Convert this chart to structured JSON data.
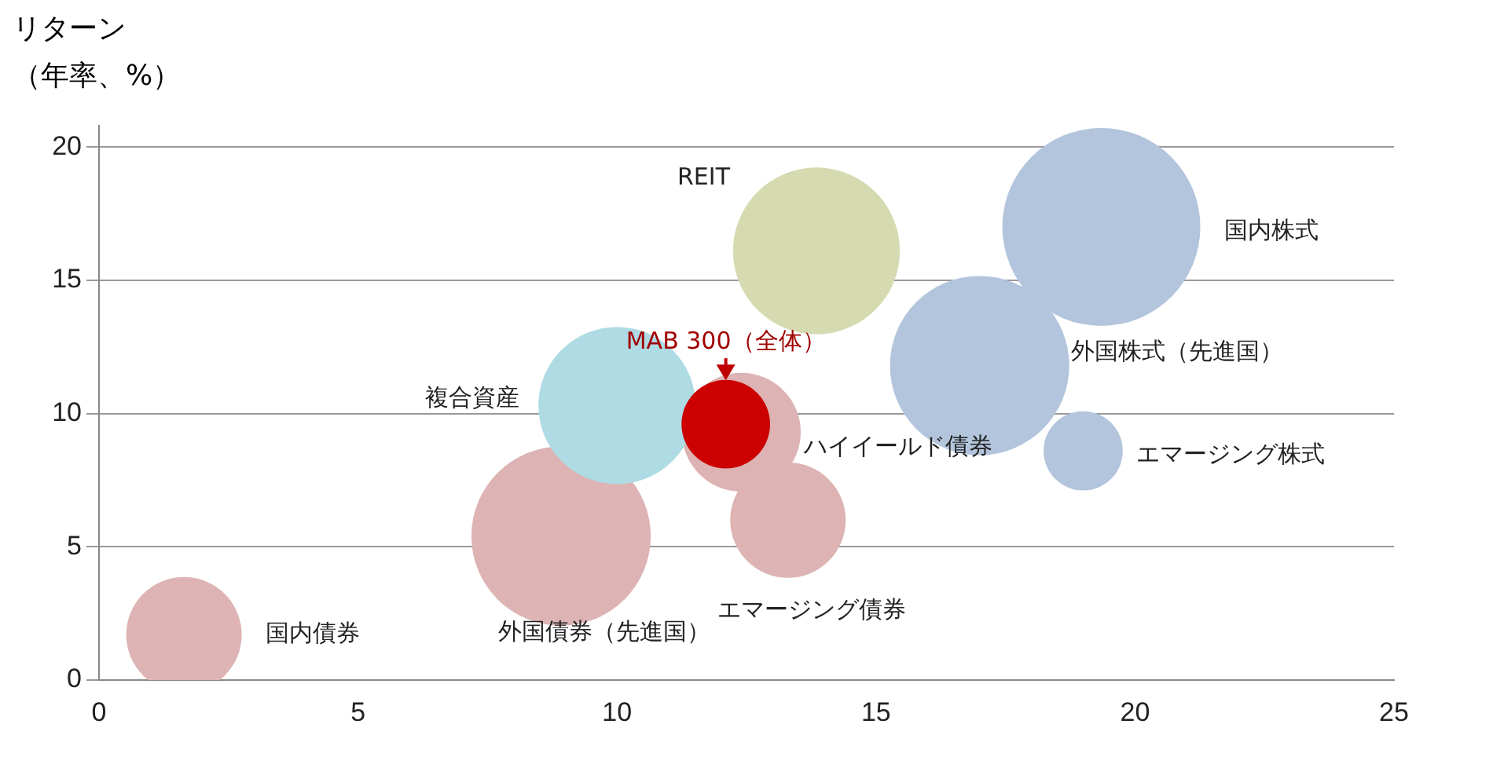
{
  "chart_data": {
    "type": "bubble",
    "ylabel": "リターン（年率、%）",
    "xlim": [
      0,
      25
    ],
    "xticks": [
      0,
      5,
      10,
      15,
      20,
      25
    ],
    "ylim": [
      0,
      20.8
    ],
    "yticks": [
      0,
      5,
      10,
      15,
      20
    ],
    "grid": "y",
    "legend": false,
    "series": [
      {
        "name": "国内債券",
        "color": "#ddb3b3",
        "x": [
          1.64
        ],
        "values": [
          1.7
        ],
        "sizes": [
          0.34
        ]
      },
      {
        "name": "外国債券（先進国）",
        "color": "#ddb3b3",
        "x": [
          8.92
        ],
        "values": [
          5.4
        ],
        "sizes": [
          0.82
        ]
      },
      {
        "name": "エマージング債券",
        "color": "#ddb3b3",
        "x": [
          13.3
        ],
        "values": [
          6.0
        ],
        "sizes": [
          0.34
        ]
      },
      {
        "name": "ハイイールド債券",
        "color": "#ddb3b3",
        "x": [
          12.4
        ],
        "values": [
          9.3
        ],
        "sizes": [
          0.36
        ]
      },
      {
        "name": "複合資産",
        "color": "#aedbe4",
        "x": [
          10.0
        ],
        "values": [
          10.3
        ],
        "sizes": [
          0.63
        ]
      },
      {
        "name": "REIT",
        "color": "#d6dab0",
        "x": [
          13.85
        ],
        "values": [
          16.1
        ],
        "sizes": [
          0.71
        ]
      },
      {
        "name": "外国株式（先進国）",
        "color": "#b3c5dc",
        "x": [
          17.0
        ],
        "values": [
          11.8
        ],
        "sizes": [
          0.82
        ]
      },
      {
        "name": "国内株式",
        "color": "#b3c5dc",
        "x": [
          19.35
        ],
        "values": [
          17.0
        ],
        "sizes": [
          1
        ]
      },
      {
        "name": "エマージング株式",
        "color": "#b3c5dc",
        "x": [
          19.0
        ],
        "values": [
          8.6
        ],
        "sizes": [
          0.16
        ]
      },
      {
        "name": "MAB 300（全体）",
        "color": "#cc0000",
        "x": [
          12.1
        ],
        "values": [
          9.6
        ],
        "sizes": [
          0.2
        ]
      }
    ]
  }
}
